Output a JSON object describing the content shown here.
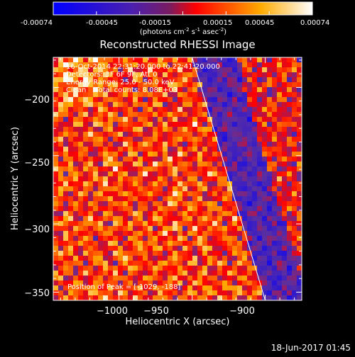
{
  "colorbar": {
    "ticks": [
      "-0.00074",
      "-0.00045",
      "-0.00015",
      "0.00015",
      "0.00045",
      "0.00074"
    ],
    "units_main": "(photons cm",
    "units_exp1": "-2",
    "units_mid": " s",
    "units_exp2": "-1",
    "units_mid2": " asec",
    "units_exp3": "-2",
    "units_end": ")"
  },
  "info": {
    "line1": "16-Oct-2014 22:31:20.000 to 22:41:20.000",
    "line2": "Detectors: 3F 6F 9F, Att 0",
    "line3": "Energy Range: 25.0 - 50.0 keV",
    "line4": "Clean    Total counts: 8.08E+03"
  },
  "peak_label": "Position of Peak = [-1029, -188]",
  "footer": {
    "timestamp": "18-Jun-2017 01:45"
  },
  "colors": {
    "background": "#000000",
    "limb": "#ffffff",
    "colormap": [
      "#0000ff",
      "#5b2fa0",
      "#ff0000",
      "#ffaa00",
      "#ffffff"
    ]
  },
  "chart_data": {
    "type": "heatmap",
    "title": "Reconstructed RHESSI Image",
    "xlabel": "Heliocentric X (arcsec)",
    "ylabel": "Heliocentric Y (arcsec)",
    "xlim": [
      -1045,
      -875
    ],
    "ylim": [
      -356,
      -178
    ],
    "xticks": [
      -1000,
      -950,
      -900
    ],
    "xtick_labels": [
      "−1000",
      "−950",
      "−900"
    ],
    "yticks": [
      -200,
      -250,
      -300,
      -350
    ],
    "ytick_labels": [
      "−200",
      "−250",
      "−300",
      "−350"
    ],
    "value_range": [
      -0.00074,
      0.00074
    ],
    "peak": [
      -1029,
      -188
    ],
    "limb_line": [
      [
        -950,
        -178
      ],
      [
        -900,
        -356
      ]
    ]
  }
}
